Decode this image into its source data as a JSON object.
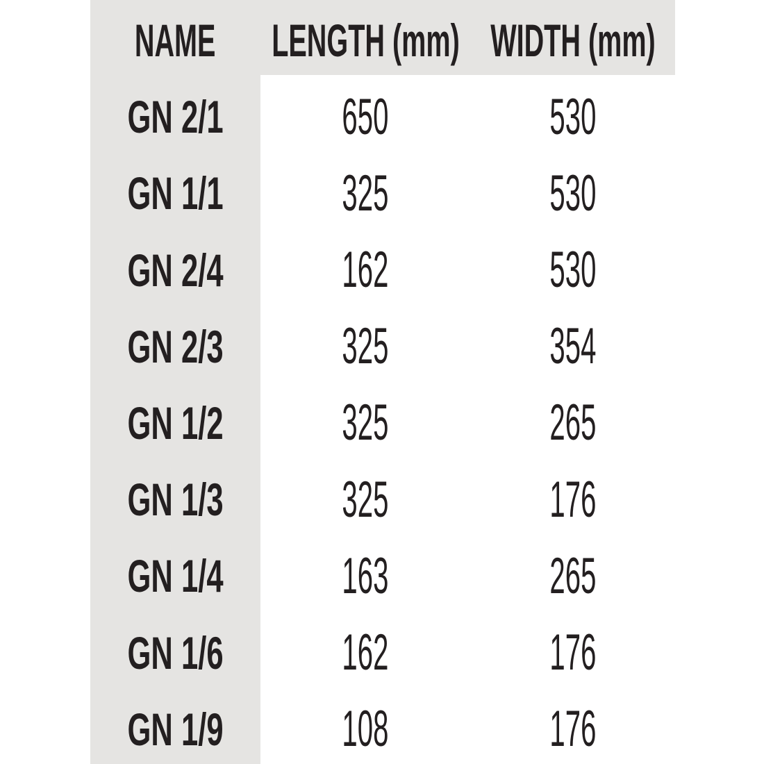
{
  "colors": {
    "band_bg": "#e5e4e2",
    "text": "#231f20",
    "page_bg": "#ffffff"
  },
  "chart_data": {
    "type": "table",
    "columns": [
      "NAME",
      "LENGTH (mm)",
      "WIDTH (mm)"
    ],
    "rows": [
      [
        "GN 2/1",
        "650",
        "530"
      ],
      [
        "GN 1/1",
        "325",
        "530"
      ],
      [
        "GN 2/4",
        "162",
        "530"
      ],
      [
        "GN 2/3",
        "325",
        "354"
      ],
      [
        "GN 1/2",
        "325",
        "265"
      ],
      [
        "GN 1/3",
        "325",
        "176"
      ],
      [
        "GN 1/4",
        "163",
        "265"
      ],
      [
        "GN 1/6",
        "162",
        "176"
      ],
      [
        "GN 1/9",
        "108",
        "176"
      ]
    ],
    "layout": {
      "header_band_shaded": true,
      "name_column_shaded": true,
      "grid_lines": false,
      "alignment": "center"
    }
  }
}
